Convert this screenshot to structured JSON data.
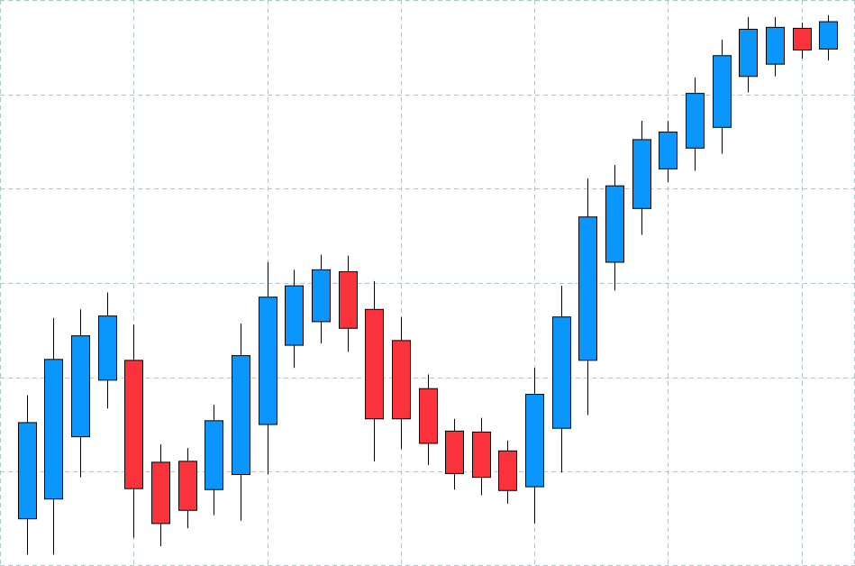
{
  "chart_data": {
    "type": "candlestick",
    "title": "",
    "xlabel": "",
    "ylabel": "",
    "grid": true,
    "legend": "none",
    "xlim": [
      0,
      32
    ],
    "ylim": [
      0,
      600
    ],
    "colors": {
      "up": "#0a96fa",
      "down": "#fa323c",
      "wick": "#000000",
      "grid": "#a9c8c8",
      "background": "#ffffff"
    },
    "candles": [
      {
        "x": 1,
        "open": 50,
        "high": 181,
        "low": 12,
        "close": 152
      },
      {
        "x": 2,
        "open": 71,
        "high": 263,
        "low": 12,
        "close": 219
      },
      {
        "x": 3,
        "open": 137,
        "high": 272,
        "low": 94,
        "close": 244
      },
      {
        "x": 4,
        "open": 197,
        "high": 290,
        "low": 167,
        "close": 265
      },
      {
        "x": 5,
        "open": 218,
        "high": 256,
        "low": 30,
        "close": 82
      },
      {
        "x": 6,
        "open": 110,
        "high": 129,
        "low": 21,
        "close": 45
      },
      {
        "x": 7,
        "open": 111,
        "high": 125,
        "low": 40,
        "close": 59
      },
      {
        "x": 8,
        "open": 81,
        "high": 171,
        "low": 54,
        "close": 154
      },
      {
        "x": 9,
        "open": 97,
        "high": 257,
        "low": 48,
        "close": 223
      },
      {
        "x": 10,
        "open": 150,
        "high": 322,
        "low": 97,
        "close": 285
      },
      {
        "x": 11,
        "open": 234,
        "high": 314,
        "low": 210,
        "close": 297
      },
      {
        "x": 12,
        "open": 259,
        "high": 330,
        "low": 236,
        "close": 314
      },
      {
        "x": 13,
        "open": 312,
        "high": 329,
        "low": 227,
        "close": 252
      },
      {
        "x": 14,
        "open": 272,
        "high": 302,
        "low": 111,
        "close": 156
      },
      {
        "x": 15,
        "open": 239,
        "high": 264,
        "low": 124,
        "close": 156
      },
      {
        "x": 16,
        "open": 188,
        "high": 203,
        "low": 107,
        "close": 130
      },
      {
        "x": 17,
        "open": 143,
        "high": 156,
        "low": 81,
        "close": 98
      },
      {
        "x": 18,
        "open": 142,
        "high": 157,
        "low": 75,
        "close": 94
      },
      {
        "x": 19,
        "open": 122,
        "high": 133,
        "low": 66,
        "close": 80
      },
      {
        "x": 20,
        "open": 84,
        "high": 210,
        "low": 45,
        "close": 182
      },
      {
        "x": 21,
        "open": 146,
        "high": 297,
        "low": 99,
        "close": 264
      },
      {
        "x": 22,
        "open": 218,
        "high": 411,
        "low": 160,
        "close": 370
      },
      {
        "x": 23,
        "open": 322,
        "high": 425,
        "low": 292,
        "close": 403
      },
      {
        "x": 24,
        "open": 379,
        "high": 472,
        "low": 351,
        "close": 452
      },
      {
        "x": 25,
        "open": 421,
        "high": 472,
        "low": 407,
        "close": 460
      },
      {
        "x": 26,
        "open": 443,
        "high": 518,
        "low": 419,
        "close": 501
      },
      {
        "x": 27,
        "open": 465,
        "high": 558,
        "low": 437,
        "close": 541
      },
      {
        "x": 28,
        "open": 519,
        "high": 582,
        "low": 502,
        "close": 569
      },
      {
        "x": 29,
        "open": 532,
        "high": 582,
        "low": 519,
        "close": 571
      },
      {
        "x": 30,
        "open": 570,
        "high": 576,
        "low": 538,
        "close": 547
      },
      {
        "x": 31,
        "open": 548,
        "high": 584,
        "low": 536,
        "close": 577
      }
    ],
    "x_gridlines": [
      5,
      10,
      15,
      20,
      25,
      30
    ],
    "y_gridlines": [
      100,
      200,
      300,
      400,
      500
    ]
  }
}
